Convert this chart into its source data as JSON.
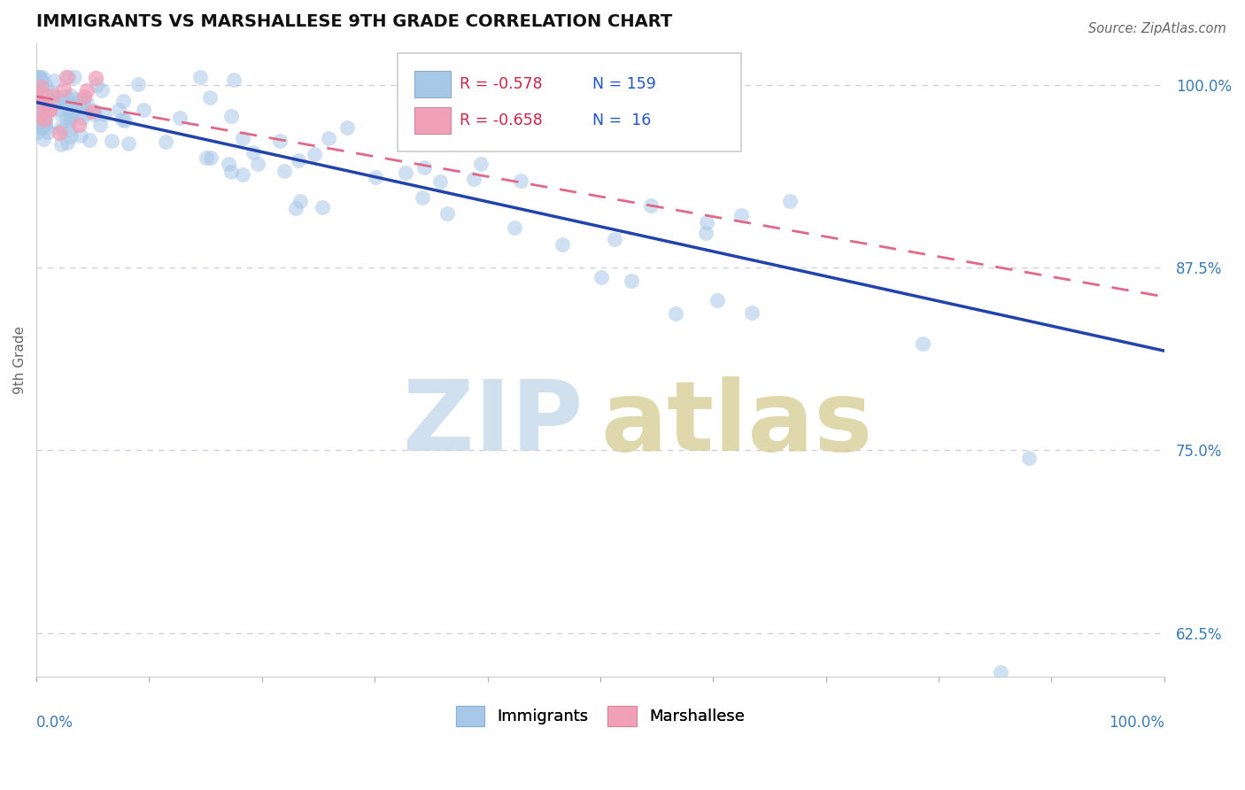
{
  "title": "IMMIGRANTS VS MARSHALLESE 9TH GRADE CORRELATION CHART",
  "source_text": "Source: ZipAtlas.com",
  "ylabel": "9th Grade",
  "ytick_labels": [
    "62.5%",
    "75.0%",
    "87.5%",
    "100.0%"
  ],
  "ytick_values": [
    0.625,
    0.75,
    0.875,
    1.0
  ],
  "ymin": 0.595,
  "ymax": 1.028,
  "xmin": 0.0,
  "xmax": 1.0,
  "immigrants_color": "#a8c8e8",
  "marshallese_color": "#f0a0b8",
  "trend_immigrants_color": "#2244aa",
  "trend_marshallese_color": "#e06888",
  "trend_imm_start": 0.988,
  "trend_imm_end": 0.818,
  "trend_marsh_start": 0.992,
  "trend_marsh_end": 0.855,
  "R_immigrants": -0.578,
  "N_immigrants": 159,
  "R_marshallese": -0.658,
  "N_marshallese": 16,
  "legend_R1": "R = -0.578",
  "legend_N1": "N = 159",
  "legend_R2": "R = -0.658",
  "legend_N2": "N =  16",
  "watermark_zip_color": "#bdd4e8",
  "watermark_atlas_color": "#d4c88a",
  "grid_color": "#ccccdd",
  "spine_color": "#cccccc"
}
